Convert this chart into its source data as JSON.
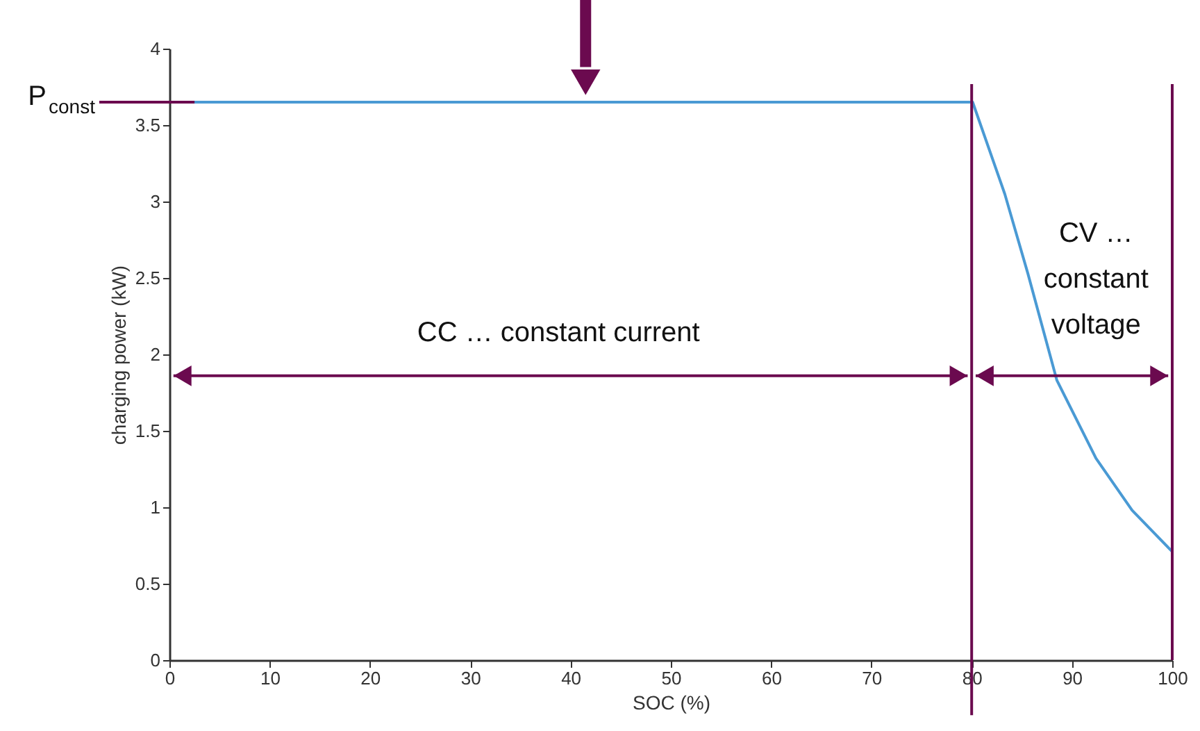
{
  "chart_data": {
    "type": "line",
    "xlabel": "SOC (%)",
    "ylabel": "charging power (kW)",
    "x": [
      0,
      80.1,
      83.3,
      85.6,
      88.5,
      92.4,
      96.0,
      100
    ],
    "series": [
      {
        "color": "#4a9ad4",
        "values": [
          3.65,
          3.65,
          3.05,
          2.53,
          1.83,
          1.32,
          0.98,
          0.71
        ]
      }
    ],
    "xlim": [
      0,
      100
    ],
    "ylim": [
      0,
      4
    ],
    "xticks": [
      0,
      10,
      20,
      30,
      40,
      50,
      60,
      70,
      80,
      90,
      100
    ],
    "yticks": [
      0,
      0.5,
      1,
      1.5,
      2,
      2.5,
      3,
      3.5,
      4
    ],
    "ref_lines": [
      {
        "axis": "y",
        "value": 3.65,
        "label": "P$_{const}$",
        "color": "#6b0a4f"
      },
      {
        "axis": "x",
        "value": 80,
        "color": "#6b0a4f"
      },
      {
        "axis": "x",
        "value": 100,
        "color": "#6b0a4f"
      }
    ],
    "annotations": [
      "CC … constant current",
      "CV …\nconstant\nvoltage"
    ],
    "grid": false,
    "marker": "none",
    "line_style": "solid"
  }
}
